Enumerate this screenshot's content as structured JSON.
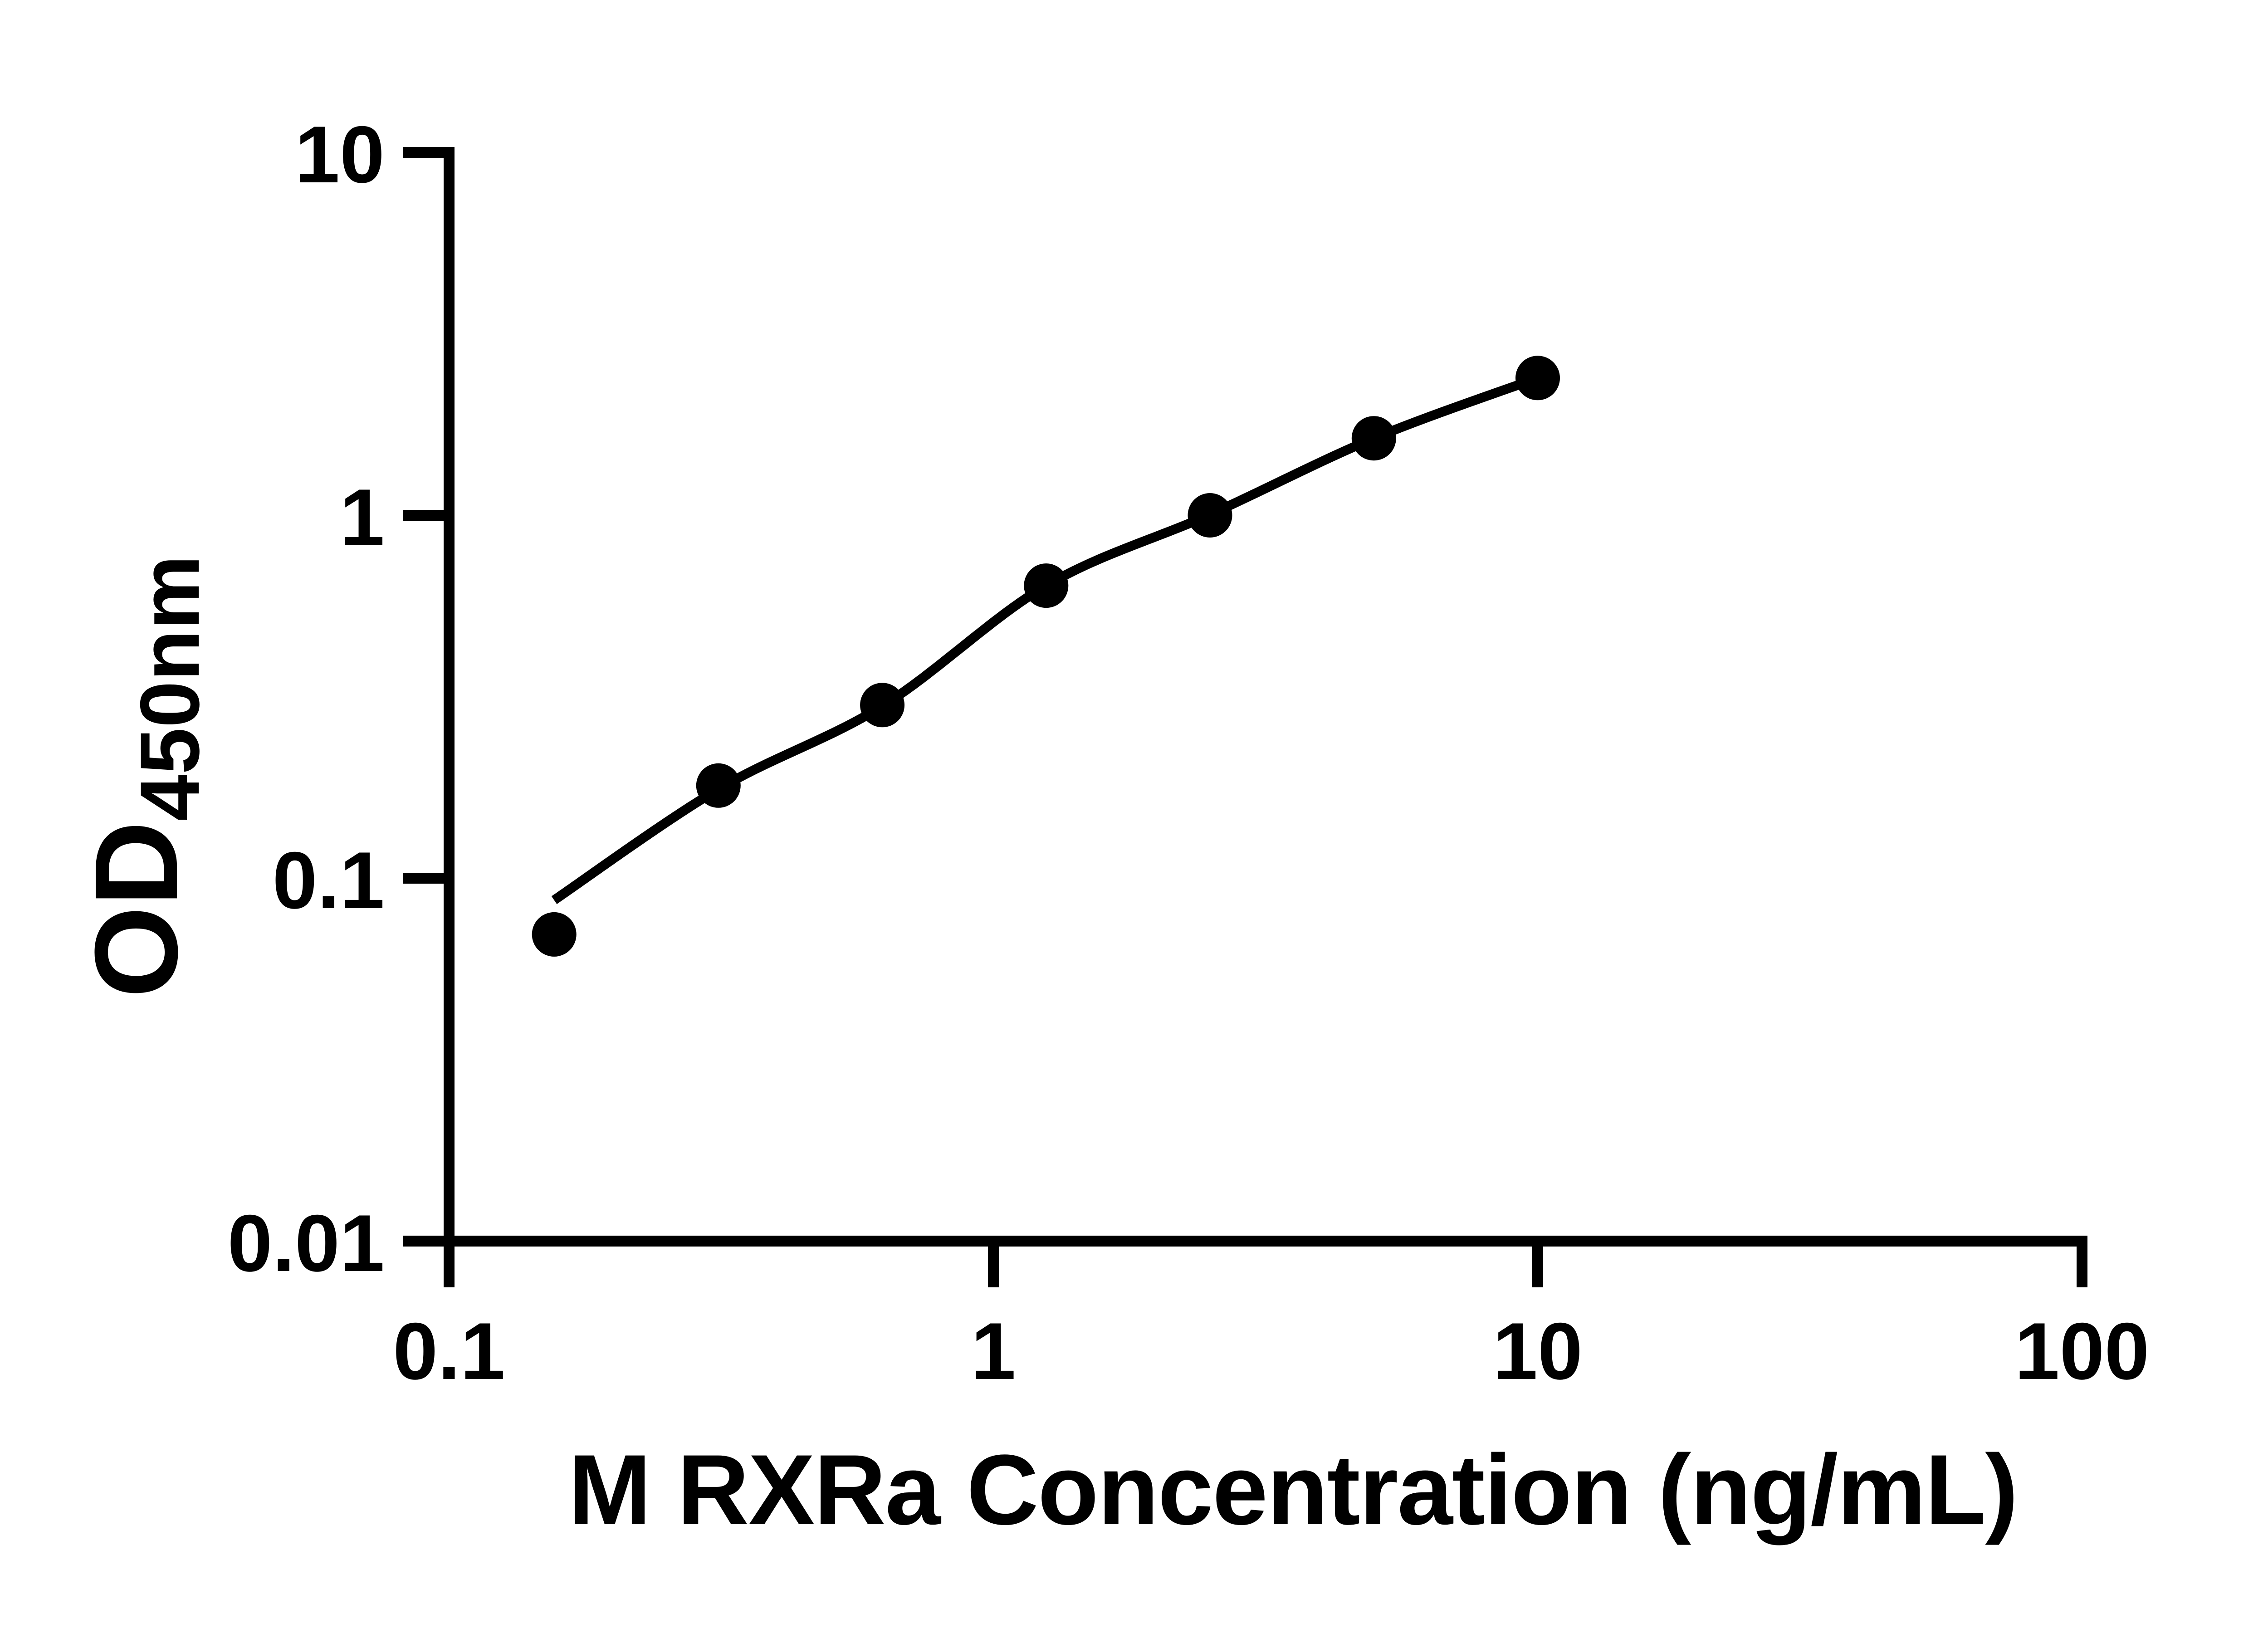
{
  "chart_data": {
    "type": "scatter",
    "title": "",
    "xlabel": "M RXRa Concentration (ng/mL)",
    "ylabel": "OD450nm",
    "ylabel_main": "OD",
    "ylabel_sub": "450nm",
    "x_scale": "log",
    "y_scale": "log",
    "xlim": [
      0.1,
      100
    ],
    "ylim": [
      0.01,
      10
    ],
    "x_ticks": [
      "0.1",
      "1",
      "10",
      "100"
    ],
    "y_ticks": [
      "10",
      "1",
      "0.1",
      "0.01"
    ],
    "grid": "off",
    "legend": "none",
    "marker": "filled-circle",
    "series": [
      {
        "name": "standard-points",
        "x": [
          0.156,
          0.3125,
          0.625,
          1.25,
          2.5,
          5,
          10
        ],
        "y": [
          0.07,
          0.18,
          0.3,
          0.64,
          1.0,
          1.63,
          2.39
        ]
      },
      {
        "name": "fit-curve",
        "x": [
          0.156,
          0.3125,
          0.625,
          1.25,
          2.5,
          5,
          10
        ],
        "y": [
          0.087,
          0.176,
          0.298,
          0.64,
          1.005,
          1.63,
          2.39
        ]
      }
    ],
    "colors": {
      "data": "#000000",
      "background": "#ffffff"
    }
  }
}
